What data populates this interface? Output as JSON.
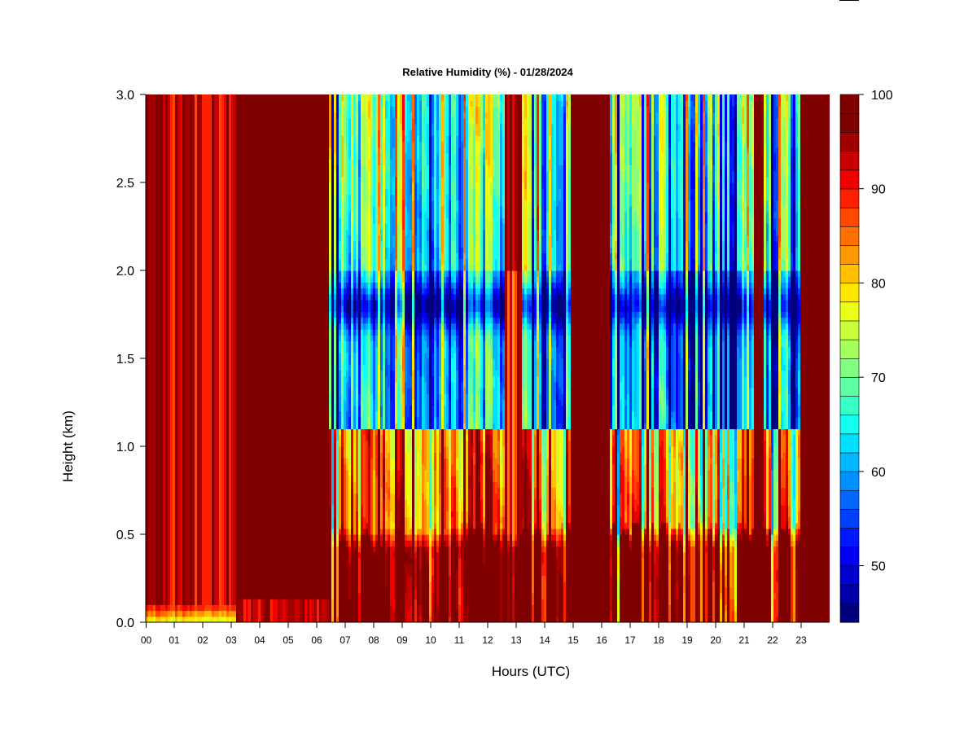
{
  "chart_data": {
    "type": "heatmap",
    "title": "Relative Humidity (%) - 01/28/2024",
    "xlabel": "Hours (UTC)",
    "ylabel": "Height (km)",
    "xlim": [
      0,
      24
    ],
    "ylim": [
      0,
      3
    ],
    "x_ticks": [
      "00",
      "01",
      "02",
      "03",
      "04",
      "05",
      "06",
      "07",
      "08",
      "09",
      "10",
      "11",
      "12",
      "13",
      "14",
      "15",
      "16",
      "17",
      "18",
      "19",
      "20",
      "21",
      "22",
      "23"
    ],
    "y_ticks": [
      "0.0",
      "0.5",
      "1.0",
      "1.5",
      "2.0",
      "2.5",
      "3.0"
    ],
    "colorbar": {
      "min": 44,
      "max": 100,
      "step": 2,
      "ticks": [
        "50",
        "60",
        "70",
        "80",
        "90",
        "100"
      ],
      "colors": [
        "#00007f",
        "#0000a8",
        "#0000d0",
        "#0000f8",
        "#0018ff",
        "#0040ff",
        "#0068ff",
        "#0090ff",
        "#00b8ff",
        "#00e0ff",
        "#14fff4",
        "#38ffc7",
        "#5cffa3",
        "#80ff80",
        "#a3ff5c",
        "#c7ff38",
        "#ebff14",
        "#ffe600",
        "#ffc000",
        "#ff9800",
        "#ff7000",
        "#ff4800",
        "#ff2000",
        "#f00000",
        "#c80000",
        "#a00000",
        "#800000",
        "#800000"
      ]
    },
    "value_points_rh": {
      "surface_dry_00_03": 72,
      "lower_layer_0_0.4km_all_day": 100,
      "layer_0.5_1.0km_07_15": 82,
      "layer_1.2_2.0km_07_15": 60,
      "min_near_1.8km": 45,
      "layer_0.5_1.0km_16_23": 80,
      "layer_1.2_2.0km_16_23": 58,
      "above_2km_daytime": 64,
      "00_06_column": 97,
      "15_16_column": 100
    }
  }
}
